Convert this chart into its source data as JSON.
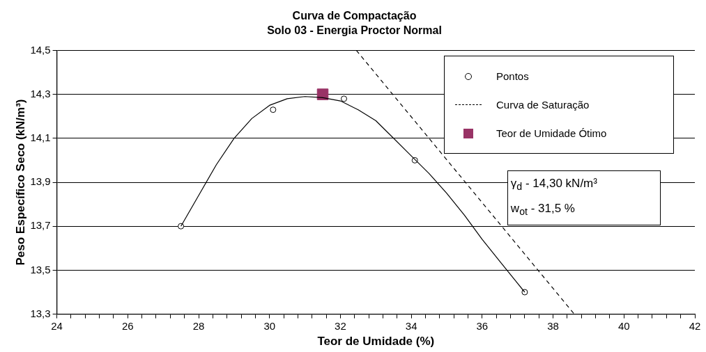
{
  "chart_data": {
    "type": "scatter",
    "title": "Curva de Compactação",
    "subtitle": "Solo 03 - Energia Proctor Normal",
    "xlabel": "Teor de Umidade (%)",
    "ylabel": "Peso Específico Seco (kN/m³)",
    "xlim": [
      24,
      42
    ],
    "ylim": [
      13.3,
      14.5
    ],
    "xticks": [
      24,
      {
        "value": 24.4,
        "label": null
      },
      {
        "value": 24.8,
        "label": null
      },
      {
        "value": 25.2,
        "label": null
      },
      {
        "value": 25.6,
        "label": null
      },
      26,
      {
        "value": 26.4,
        "label": null
      },
      {
        "value": 26.8,
        "label": null
      },
      {
        "value": 27.2,
        "label": null
      },
      {
        "value": 27.6,
        "label": null
      },
      28,
      {
        "value": 28.4,
        "label": null
      },
      {
        "value": 28.8,
        "label": null
      },
      {
        "value": 29.2,
        "label": null
      },
      {
        "value": 29.6,
        "label": null
      },
      30,
      {
        "value": 30.4,
        "label": null
      },
      {
        "value": 30.8,
        "label": null
      },
      {
        "value": 31.2,
        "label": null
      },
      {
        "value": 31.6,
        "label": null
      },
      32,
      {
        "value": 32.4,
        "label": null
      },
      {
        "value": 32.8,
        "label": null
      },
      {
        "value": 33.2,
        "label": null
      },
      {
        "value": 33.6,
        "label": null
      },
      34,
      {
        "value": 34.4,
        "label": null
      },
      {
        "value": 34.8,
        "label": null
      },
      {
        "value": 35.2,
        "label": null
      },
      {
        "value": 35.6,
        "label": null
      },
      36,
      {
        "value": 36.4,
        "label": null
      },
      {
        "value": 36.8,
        "label": null
      },
      {
        "value": 37.2,
        "label": null
      },
      {
        "value": 37.6,
        "label": null
      },
      38,
      {
        "value": 38.4,
        "label": null
      },
      {
        "value": 38.8,
        "label": null
      },
      {
        "value": 39.2,
        "label": null
      },
      {
        "value": 39.6,
        "label": null
      },
      40,
      {
        "value": 40.4,
        "label": null
      },
      {
        "value": 40.8,
        "label": null
      },
      {
        "value": 41.2,
        "label": null
      },
      {
        "value": 41.6,
        "label": null
      },
      42
    ],
    "yticks": [
      {
        "value": 13.3,
        "label": "13,3"
      },
      {
        "value": 13.5,
        "label": "13,5"
      },
      {
        "value": 13.7,
        "label": "13,7"
      },
      {
        "value": 13.9,
        "label": "13,9"
      },
      {
        "value": 14.1,
        "label": "14,1"
      },
      {
        "value": 14.3,
        "label": "14,3"
      },
      {
        "value": 14.5,
        "label": "14,5"
      }
    ],
    "grid": "y",
    "legend": "top right",
    "series": [
      {
        "type": "line",
        "color": "#000000",
        "marker": "none",
        "line_style": "solid",
        "x": [
          27.5,
          28,
          28.5,
          29,
          29.5,
          30,
          30.5,
          31,
          31.5,
          32,
          32.5,
          33,
          33.5,
          34,
          34.5,
          35,
          35.5,
          36,
          36.5,
          37,
          37.2
        ],
        "values": [
          13.7,
          13.84,
          13.98,
          14.1,
          14.19,
          14.25,
          14.28,
          14.29,
          14.285,
          14.27,
          14.23,
          14.18,
          14.1,
          14.02,
          13.94,
          13.85,
          13.75,
          13.64,
          13.54,
          13.44,
          13.4
        ]
      },
      {
        "name": "Pontos",
        "type": "scatter",
        "color": "#000000",
        "marker": "circle",
        "x": [
          27.5,
          30.1,
          32.1,
          34.1,
          37.2
        ],
        "values": [
          13.7,
          14.23,
          14.28,
          14.0,
          13.4
        ]
      },
      {
        "name": "Curva de Saturação",
        "type": "line",
        "color": "#000000",
        "marker": "none",
        "line_style": "dashed",
        "x": [
          32.45,
          38.6
        ],
        "values": [
          14.5,
          13.3
        ]
      },
      {
        "name": "Teor de Umidade Ótimo",
        "type": "scatter",
        "color": "#993366",
        "marker": "square",
        "x": [
          31.5
        ],
        "values": [
          14.3
        ]
      }
    ],
    "annotations": [
      "γ$_{d}$ - 14,30 kN/m³",
      "w$_{ot}$ - 31,5 %"
    ]
  }
}
